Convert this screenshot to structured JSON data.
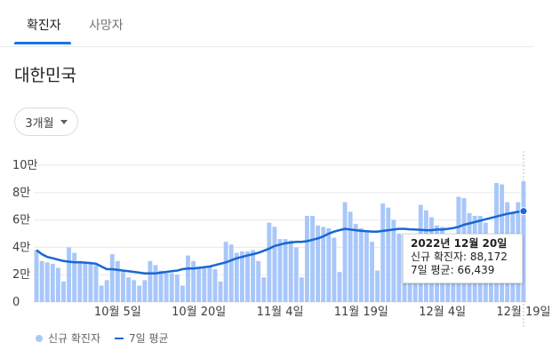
{
  "tabs": {
    "active": "확진자",
    "inactive": "사망자"
  },
  "region_title": "대한민국",
  "range_selector": "3개월",
  "colors": {
    "bar": "#a8c7fa",
    "line": "#1967d2",
    "accent": "#1a73e8",
    "grid": "#e8eaed"
  },
  "tooltip": {
    "date": "2022년 12월 20일",
    "new_label": "신규 확진자:",
    "new_value": "88,172",
    "avg_label": "7일 평균:",
    "avg_value": "66,439"
  },
  "legend": {
    "bars": "신규 확진자",
    "line": "7일 평균"
  },
  "chart_data": {
    "type": "bar",
    "ylim": [
      0,
      100000
    ],
    "yticks": [
      0,
      20000,
      40000,
      60000,
      80000,
      100000
    ],
    "ytick_labels": [
      "0",
      "2만",
      "4만",
      "6만",
      "8만",
      "10만"
    ],
    "xtick_labels": [
      "10월 5일",
      "10월 20일",
      "11월 4일",
      "11월 19일",
      "12월 4일",
      "12월 19일"
    ],
    "xtick_index": [
      15,
      30,
      45,
      60,
      75,
      90
    ],
    "start_date": "2022-09-21",
    "end_date": "2022-12-20",
    "series": [
      {
        "name": "신규 확진자",
        "values": [
          38000,
          30000,
          29000,
          28000,
          25000,
          15000,
          40000,
          36000,
          30000,
          29000,
          28000,
          27000,
          12000,
          16000,
          35000,
          30000,
          22000,
          18000,
          16000,
          12000,
          16000,
          30000,
          27000,
          23000,
          21000,
          21000,
          20000,
          12000,
          34000,
          30000,
          25000,
          25000,
          26000,
          24000,
          15000,
          44000,
          42000,
          36000,
          37000,
          37000,
          38000,
          30000,
          18000,
          58000,
          55000,
          46000,
          46000,
          45000,
          40000,
          18000,
          63000,
          63000,
          56000,
          55000,
          54000,
          47000,
          22000,
          73000,
          66000,
          57000,
          54000,
          52000,
          44000,
          23000,
          72000,
          69000,
          60000,
          50000,
          50000,
          45000,
          22000,
          71000,
          67000,
          62000,
          56000,
          55000,
          49000,
          25000,
          77000,
          76000,
          65000,
          63000,
          63000,
          58000,
          26000,
          87000,
          86000,
          73000,
          66000,
          73000,
          88172
        ]
      },
      {
        "name": "7일 평균",
        "values": [
          38000,
          35000,
          33000,
          32000,
          31000,
          30000,
          29500,
          29000,
          29000,
          28800,
          28500,
          28000,
          26000,
          24000,
          24000,
          23500,
          23000,
          22500,
          22000,
          21500,
          21000,
          21000,
          21000,
          21500,
          22000,
          22500,
          23000,
          24000,
          24500,
          24500,
          25000,
          25500,
          26000,
          27000,
          28000,
          29000,
          30500,
          32000,
          33000,
          34000,
          35000,
          36000,
          37500,
          39000,
          41000,
          42000,
          43000,
          43500,
          44000,
          44000,
          44500,
          45500,
          46500,
          48000,
          50000,
          51500,
          52500,
          53500,
          53000,
          52500,
          52000,
          51800,
          51500,
          51500,
          52000,
          52500,
          53000,
          53500,
          53500,
          53200,
          53000,
          52800,
          52500,
          52500,
          53000,
          53000,
          53500,
          54000,
          55000,
          56500,
          57500,
          58500,
          59500,
          60500,
          61500,
          62500,
          63500,
          64500,
          65200,
          66000,
          66439
        ]
      }
    ]
  }
}
